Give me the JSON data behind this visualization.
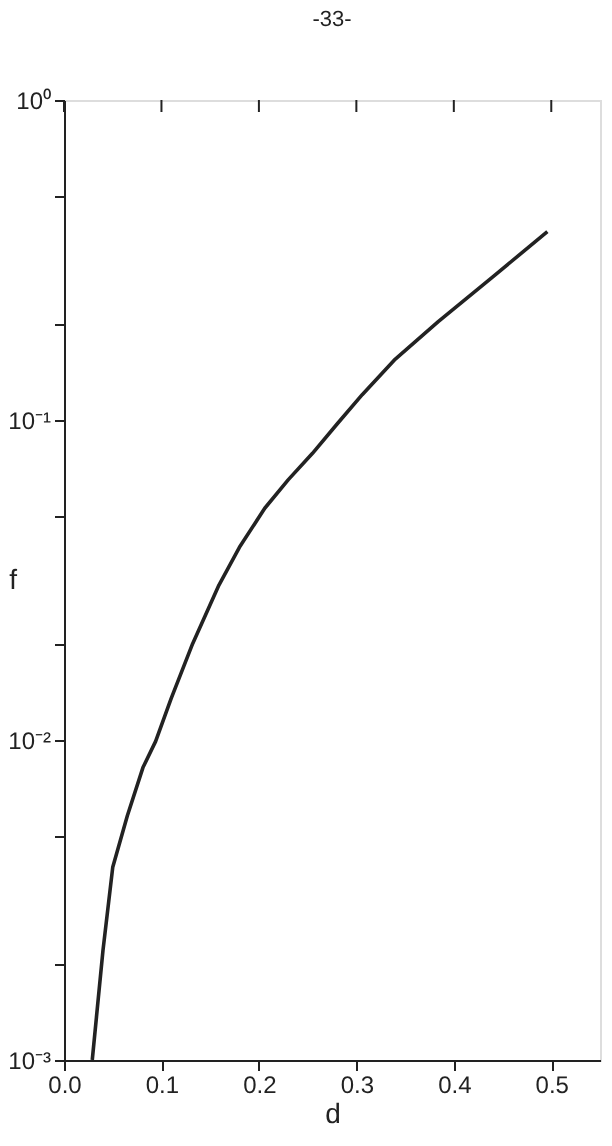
{
  "chart_data": {
    "type": "line",
    "xlabel": "d",
    "ylabel": "f",
    "annotations": [
      "-33-"
    ],
    "log": "y",
    "grid": false,
    "marker": "none",
    "line_style": "solid",
    "x": [
      0.029,
      0.04,
      0.05,
      0.065,
      0.081,
      0.094,
      0.11,
      0.132,
      0.159,
      0.18,
      0.206,
      0.23,
      0.255,
      0.28,
      0.306,
      0.34,
      0.384,
      0.44,
      0.496
    ],
    "series": [
      {
        "color": "#222222",
        "values": [
          0.001,
          0.0022,
          0.004,
          0.0058,
          0.0082,
          0.0099,
          0.0135,
          0.02,
          0.0305,
          0.04,
          0.053,
          0.065,
          0.0787,
          0.097,
          0.12,
          0.155,
          0.203,
          0.28,
          0.388
        ]
      }
    ],
    "xlim": [
      0,
      0.55
    ],
    "xticks": [
      {
        "value": 0,
        "label": "0.0"
      },
      0.1,
      0.2,
      0.3,
      0.4,
      0.5
    ],
    "ylim": [
      0.001,
      1
    ],
    "yticks": [
      {
        "value": 0.001,
        "label": "10⁻³"
      },
      {
        "value": 0.002,
        "label": null
      },
      {
        "value": 0.005,
        "label": null
      },
      {
        "value": 0.01,
        "label": "10⁻²"
      },
      {
        "value": 0.02,
        "label": null
      },
      {
        "value": 0.05,
        "label": null
      },
      {
        "value": 0.1,
        "label": "10⁻¹"
      },
      {
        "value": 0.2,
        "label": null
      },
      {
        "value": 0.5,
        "label": null
      },
      {
        "value": 1,
        "label": "10⁰"
      }
    ]
  }
}
